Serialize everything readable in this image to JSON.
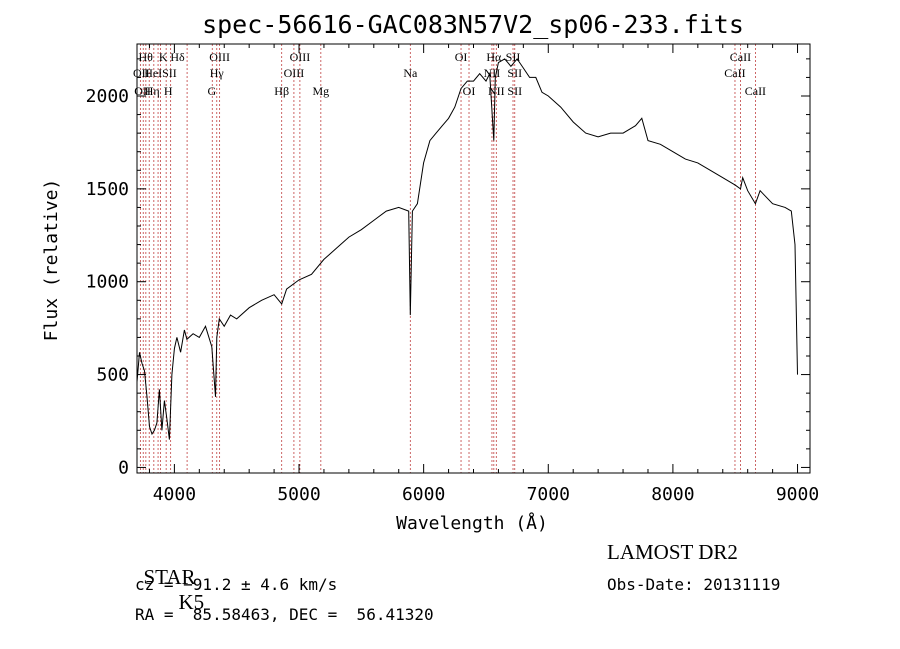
{
  "chart_data": {
    "type": "line",
    "title": "spec-56616-GAC083N57V2_sp06-233.fits",
    "xlabel": "Wavelength (Å)",
    "ylabel": "Flux (relative)",
    "xlim": [
      3700,
      9100
    ],
    "ylim": [
      -30,
      2280
    ],
    "x_ticks": [
      4000,
      5000,
      6000,
      7000,
      8000,
      9000
    ],
    "y_ticks": [
      0,
      500,
      1000,
      1500,
      2000
    ],
    "grid": false,
    "series": [
      {
        "x": [
          3700,
          3720,
          3740,
          3760,
          3780,
          3800,
          3820,
          3840,
          3860,
          3880,
          3900,
          3920,
          3940,
          3960,
          3980,
          4000,
          4020,
          4050,
          4080,
          4100,
          4150,
          4200,
          4250,
          4300,
          4330,
          4340,
          4360,
          4400,
          4450,
          4500,
          4600,
          4700,
          4800,
          4861,
          4900,
          5000,
          5100,
          5200,
          5300,
          5400,
          5500,
          5600,
          5700,
          5800,
          5880,
          5893,
          5910,
          5950,
          6000,
          6050,
          6100,
          6150,
          6200,
          6250,
          6300,
          6350,
          6400,
          6450,
          6500,
          6530,
          6550,
          6563,
          6575,
          6600,
          6650,
          6700,
          6750,
          6800,
          6850,
          6900,
          6950,
          7000,
          7100,
          7200,
          7300,
          7400,
          7500,
          7600,
          7700,
          7750,
          7800,
          7900,
          8000,
          8100,
          8200,
          8300,
          8400,
          8500,
          8542,
          8560,
          8600,
          8662,
          8700,
          8800,
          8900,
          8950,
          8980,
          9000
        ],
        "y": [
          460,
          620,
          560,
          520,
          380,
          220,
          180,
          200,
          240,
          420,
          200,
          360,
          260,
          150,
          500,
          640,
          700,
          620,
          740,
          690,
          720,
          700,
          760,
          650,
          380,
          700,
          800,
          760,
          820,
          800,
          860,
          900,
          930,
          880,
          960,
          1010,
          1040,
          1120,
          1180,
          1240,
          1280,
          1330,
          1380,
          1400,
          1380,
          820,
          1380,
          1420,
          1640,
          1760,
          1800,
          1840,
          1880,
          1940,
          2040,
          2080,
          2080,
          2120,
          2080,
          2120,
          1900,
          1760,
          2100,
          2180,
          2200,
          2160,
          2200,
          2150,
          2100,
          2100,
          2020,
          2000,
          1940,
          1860,
          1800,
          1780,
          1800,
          1800,
          1840,
          1880,
          1760,
          1740,
          1700,
          1660,
          1640,
          1600,
          1560,
          1520,
          1500,
          1560,
          1490,
          1420,
          1490,
          1420,
          1400,
          1380,
          1200,
          500
        ]
      }
    ],
    "lines": [
      {
        "wl": 3727,
        "top": [
          "OII"
        ],
        "bottom": []
      },
      {
        "wl": 3750,
        "top": [],
        "bottom": []
      },
      {
        "wl": 3771,
        "top": [],
        "bottom": []
      },
      {
        "wl": 3798,
        "top": [],
        "bottom": []
      },
      {
        "wl": 3835,
        "top": [],
        "bottom": []
      },
      {
        "wl": 3869,
        "top": [],
        "bottom": []
      },
      {
        "wl": 3889,
        "top": [],
        "bottom": []
      },
      {
        "wl": 3934,
        "top": [],
        "bottom": []
      },
      {
        "wl": 3970,
        "top": [],
        "bottom": []
      },
      {
        "wl": 4102,
        "top": [],
        "bottom": []
      },
      {
        "wl": 4304,
        "top": [],
        "bottom": []
      },
      {
        "wl": 4340,
        "top": [],
        "bottom": []
      },
      {
        "wl": 4363,
        "top": [],
        "bottom": []
      },
      {
        "wl": 4861,
        "top": [],
        "bottom": []
      },
      {
        "wl": 4959,
        "top": [],
        "bottom": []
      },
      {
        "wl": 5007,
        "top": [],
        "bottom": []
      },
      {
        "wl": 5175,
        "top": [],
        "bottom": []
      },
      {
        "wl": 5893,
        "top": [],
        "bottom": []
      },
      {
        "wl": 6300,
        "top": [],
        "bottom": []
      },
      {
        "wl": 6364,
        "top": [],
        "bottom": []
      },
      {
        "wl": 6548,
        "top": [],
        "bottom": []
      },
      {
        "wl": 6563,
        "top": [],
        "bottom": []
      },
      {
        "wl": 6583,
        "top": [],
        "bottom": []
      },
      {
        "wl": 6717,
        "top": [],
        "bottom": []
      },
      {
        "wl": 6731,
        "top": [],
        "bottom": []
      },
      {
        "wl": 8498,
        "top": [],
        "bottom": []
      },
      {
        "wl": 8542,
        "top": [],
        "bottom": []
      },
      {
        "wl": 8662,
        "top": [],
        "bottom": []
      }
    ],
    "line_labels": [
      {
        "wl": 3770,
        "row": 0,
        "text": "Hθ"
      },
      {
        "wl": 3735,
        "row": 1,
        "text": "OII"
      },
      {
        "wl": 3745,
        "row": 2,
        "text": "OII"
      },
      {
        "wl": 3910,
        "row": 0,
        "text": "K"
      },
      {
        "wl": 3830,
        "row": 1,
        "text": "HeI"
      },
      {
        "wl": 3822,
        "row": 2,
        "text": "Hη"
      },
      {
        "wl": 4025,
        "row": 0,
        "text": "Hδ"
      },
      {
        "wl": 3960,
        "row": 1,
        "text": "SII"
      },
      {
        "wl": 3950,
        "row": 2,
        "text": "H"
      },
      {
        "wl": 4363,
        "row": 0,
        "text": "OIII"
      },
      {
        "wl": 4340,
        "row": 1,
        "text": "Hγ"
      },
      {
        "wl": 4300,
        "row": 2,
        "text": "G"
      },
      {
        "wl": 5007,
        "row": 0,
        "text": "OIII"
      },
      {
        "wl": 4959,
        "row": 1,
        "text": "OIII"
      },
      {
        "wl": 4861,
        "row": 2,
        "text": "Hβ"
      },
      {
        "wl": 5175,
        "row": 2,
        "text": "Mg"
      },
      {
        "wl": 5893,
        "row": 1,
        "text": "Na"
      },
      {
        "wl": 6300,
        "row": 0,
        "text": "OI"
      },
      {
        "wl": 6364,
        "row": 2,
        "text": "OI"
      },
      {
        "wl": 6563,
        "row": 0,
        "text": "Hα"
      },
      {
        "wl": 6548,
        "row": 1,
        "text": "NII"
      },
      {
        "wl": 6583,
        "row": 2,
        "text": "NII"
      },
      {
        "wl": 6717,
        "row": 0,
        "text": "SII"
      },
      {
        "wl": 6731,
        "row": 1,
        "text": "SII"
      },
      {
        "wl": 6731,
        "row": 2,
        "text": "SII"
      },
      {
        "wl": 8542,
        "row": 0,
        "text": "CaII"
      },
      {
        "wl": 8498,
        "row": 1,
        "text": "CaII"
      },
      {
        "wl": 8662,
        "row": 2,
        "text": "CaII"
      }
    ],
    "line_color": "#c04040",
    "data_color": "#000000"
  },
  "info": {
    "class": "STAR",
    "subclass": "K5",
    "redshift": "cz = −91.2 ± 4.6 km/s",
    "coords": "RA =  85.58463, DEC =  56.41320",
    "survey": "LAMOST DR2",
    "obs_date": "Obs-Date: 20131119"
  }
}
